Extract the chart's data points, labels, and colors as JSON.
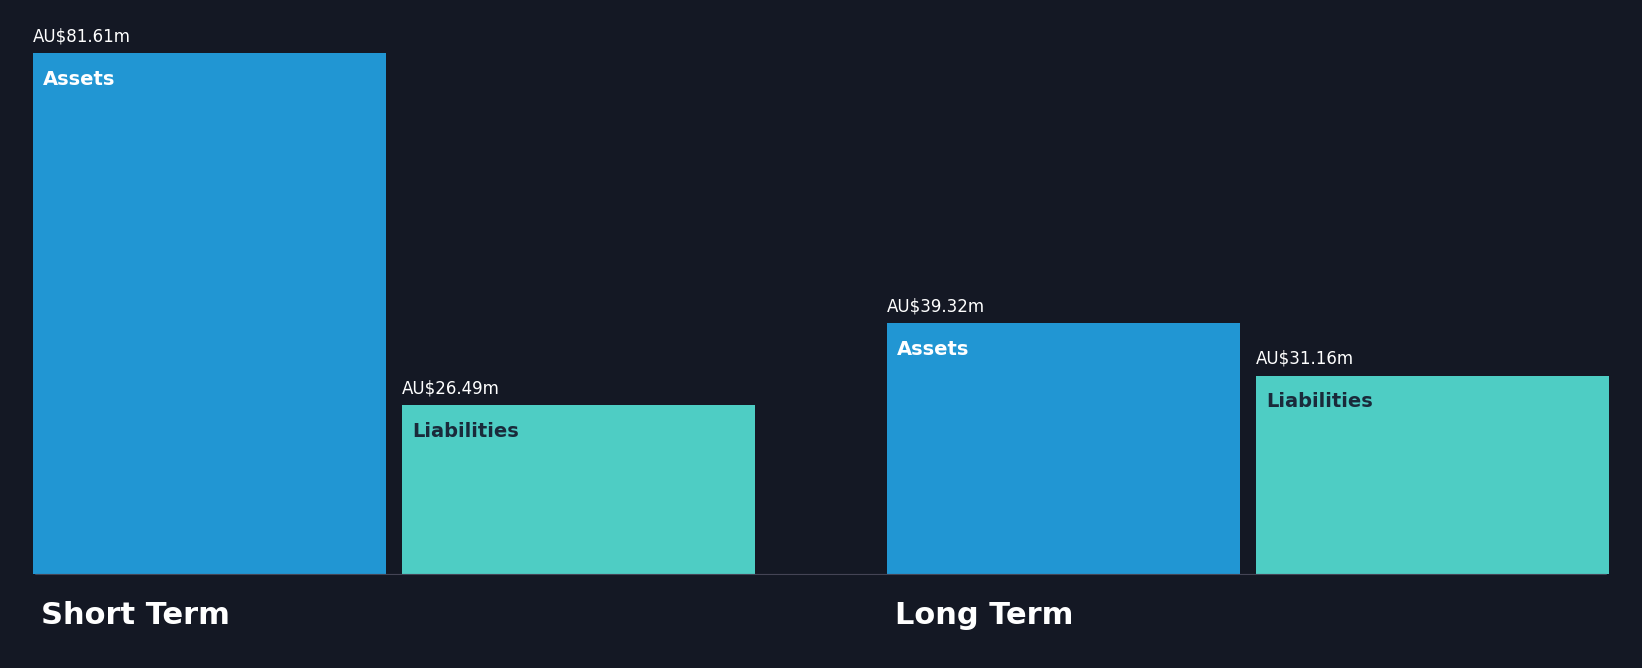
{
  "background_color": "#141824",
  "short_term": {
    "assets_value": 81.61,
    "liabilities_value": 26.49,
    "assets_label": "Assets",
    "liabilities_label": "Liabilities",
    "assets_color": "#2196d3",
    "liabilities_color": "#4ecdc4",
    "group_label": "Short Term"
  },
  "long_term": {
    "assets_value": 39.32,
    "liabilities_value": 31.16,
    "assets_label": "Assets",
    "liabilities_label": "Liabilities",
    "assets_color": "#2196d3",
    "liabilities_color": "#4ecdc4",
    "group_label": "Long Term"
  },
  "max_value": 81.61,
  "text_color_white": "#ffffff",
  "text_color_dark": "#1a2a3a",
  "label_fontsize": 14,
  "value_fontsize": 12,
  "group_label_fontsize": 22
}
